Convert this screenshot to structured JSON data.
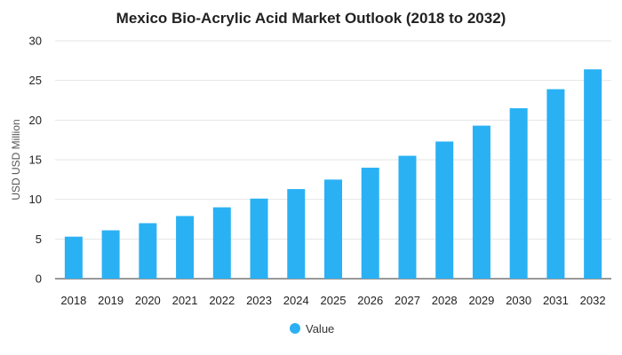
{
  "chart_data": {
    "type": "bar",
    "title": "Mexico Bio-Acrylic Acid Market Outlook (2018 to 2032)",
    "xlabel": "",
    "ylabel": "USD USD Million",
    "categories": [
      "2018",
      "2019",
      "2020",
      "2021",
      "2022",
      "2023",
      "2024",
      "2025",
      "2026",
      "2027",
      "2028",
      "2029",
      "2030",
      "2031",
      "2032"
    ],
    "series": [
      {
        "name": "Value",
        "color": "#2ab1f4",
        "values": [
          5.3,
          6.1,
          7.0,
          7.9,
          9.0,
          10.1,
          11.3,
          12.5,
          14.0,
          15.5,
          17.3,
          19.3,
          21.5,
          23.9,
          26.4
        ]
      }
    ],
    "ylim": [
      0,
      30
    ],
    "yticks": [
      "0",
      "5",
      "10",
      "15",
      "20",
      "25",
      "30"
    ],
    "grid": true,
    "legend_position": "bottom"
  }
}
